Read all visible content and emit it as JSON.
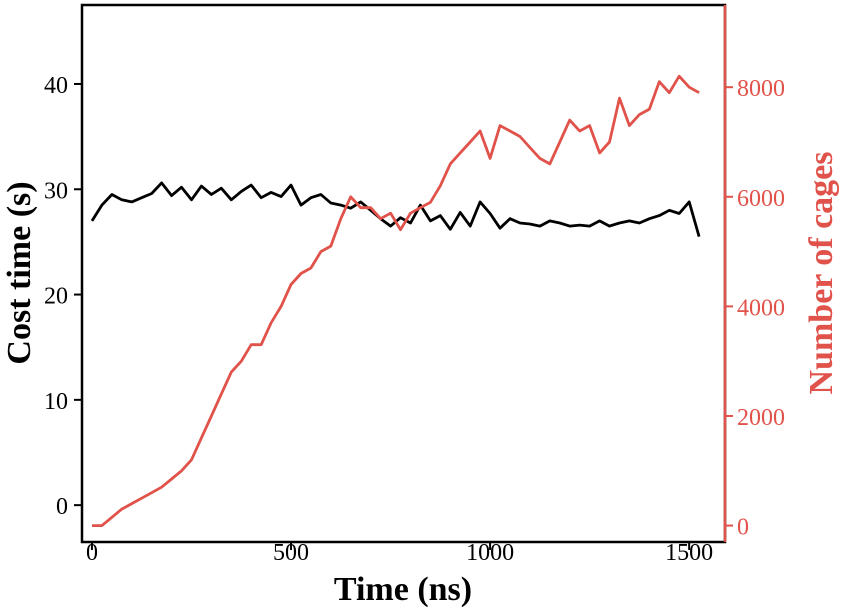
{
  "colors": {
    "left_series": "#000000",
    "right_series": "#e0524a",
    "right_axis": "#e0524a",
    "axis": "#000000"
  },
  "chart_data": {
    "type": "line",
    "xlabel": "Time (ns)",
    "ylabel": "Cost time (s)",
    "y2label": "Number of cages",
    "xlim": [
      -25,
      1590
    ],
    "ylim": [
      -3.5,
      47.5
    ],
    "y2lim": [
      -300,
      9500
    ],
    "xticks": [
      "0",
      "500",
      "1000",
      "1500"
    ],
    "yticks": [
      "0",
      "10",
      "20",
      "30",
      "40"
    ],
    "y2ticks": [
      "0",
      "2000",
      "4000",
      "6000",
      "8000"
    ],
    "grid": false,
    "legend": "none",
    "series": [
      {
        "axis": "left",
        "x": [
          0,
          25,
          50,
          75,
          100,
          125,
          150,
          175,
          200,
          225,
          250,
          275,
          300,
          325,
          350,
          375,
          400,
          425,
          450,
          475,
          500,
          525,
          550,
          575,
          600,
          625,
          650,
          675,
          700,
          725,
          750,
          775,
          800,
          825,
          850,
          875,
          900,
          925,
          950,
          975,
          1000,
          1025,
          1050,
          1075,
          1100,
          1125,
          1150,
          1175,
          1200,
          1225,
          1250,
          1275,
          1300,
          1325,
          1350,
          1375,
          1400,
          1425,
          1450,
          1475,
          1500,
          1525
        ],
        "values": [
          27.0,
          28.5,
          29.5,
          29.0,
          28.8,
          29.2,
          29.6,
          30.6,
          29.4,
          30.2,
          29.0,
          30.3,
          29.5,
          30.1,
          29.0,
          29.8,
          30.4,
          29.2,
          29.7,
          29.3,
          30.4,
          28.5,
          29.2,
          29.5,
          28.7,
          28.5,
          28.2,
          28.8,
          28.0,
          27.2,
          26.5,
          27.3,
          26.8,
          28.5,
          27.0,
          27.5,
          26.2,
          27.8,
          26.5,
          28.8,
          27.7,
          26.3,
          27.2,
          26.8,
          26.7,
          26.5,
          27.0,
          26.8,
          26.5,
          26.6,
          26.5,
          27.0,
          26.5,
          26.8,
          27.0,
          26.8,
          27.2,
          27.5,
          28.0,
          27.7,
          28.8,
          25.5
        ]
      },
      {
        "axis": "right",
        "x": [
          0,
          25,
          50,
          75,
          100,
          125,
          150,
          175,
          200,
          225,
          250,
          275,
          300,
          325,
          350,
          375,
          400,
          425,
          450,
          475,
          500,
          525,
          550,
          575,
          600,
          625,
          650,
          675,
          700,
          725,
          750,
          775,
          800,
          825,
          850,
          875,
          900,
          925,
          950,
          975,
          1000,
          1025,
          1050,
          1075,
          1100,
          1125,
          1150,
          1175,
          1200,
          1225,
          1250,
          1275,
          1300,
          1325,
          1350,
          1375,
          1400,
          1425,
          1450,
          1475,
          1500,
          1525
        ],
        "values": [
          0,
          0,
          150,
          300,
          400,
          500,
          600,
          700,
          850,
          1000,
          1200,
          1600,
          2000,
          2400,
          2800,
          3000,
          3300,
          3300,
          3700,
          4000,
          4400,
          4600,
          4700,
          5000,
          5100,
          5600,
          6000,
          5800,
          5800,
          5600,
          5700,
          5400,
          5700,
          5800,
          5900,
          6200,
          6600,
          6800,
          7000,
          7200,
          6700,
          7300,
          7200,
          7100,
          6900,
          6700,
          6600,
          7000,
          7400,
          7200,
          7300,
          6800,
          7000,
          7800,
          7300,
          7500,
          7600,
          8100,
          7900,
          8200,
          8000,
          7900
        ]
      }
    ]
  }
}
